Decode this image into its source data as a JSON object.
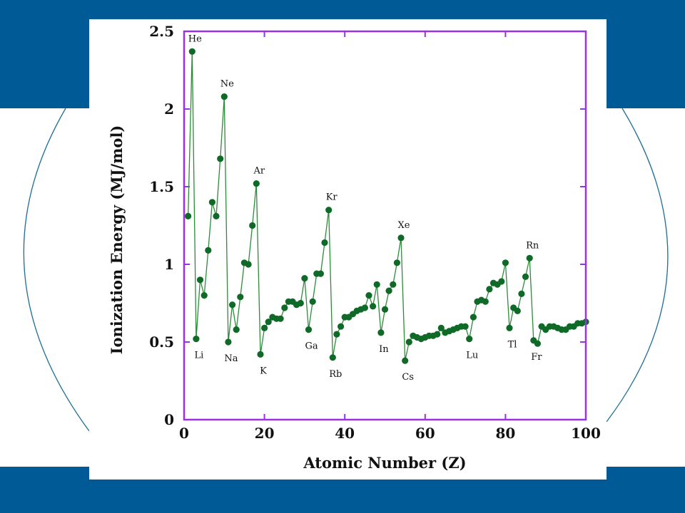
{
  "slide": {
    "band_color": "#005a96",
    "arc_color": "#1f6f96"
  },
  "chart_data": {
    "type": "line",
    "title": "",
    "xlabel": "Atomic Number (Z)",
    "ylabel": "Ionization Energy (MJ/mol)",
    "xlim": [
      0,
      100
    ],
    "ylim": [
      0,
      2.5
    ],
    "xticks": [
      0,
      20,
      40,
      60,
      80,
      100
    ],
    "yticks": [
      0,
      0.5,
      1,
      1.5,
      2,
      2.5
    ],
    "xtick_labels": [
      "0",
      "20",
      "40",
      "60",
      "80",
      "100"
    ],
    "ytick_labels": [
      "0",
      "0.5",
      "1",
      "1.5",
      "2",
      "2.5"
    ],
    "grid": false,
    "frame_color": "#9b30e6",
    "line_color": "#2e8b3a",
    "marker_color": "#0f6a28",
    "series": [
      {
        "x": [
          1,
          2,
          3,
          4,
          5,
          6,
          7,
          8,
          9,
          10,
          11,
          12,
          13,
          14,
          15,
          16,
          17,
          18,
          19,
          20,
          21,
          22,
          23,
          24,
          25,
          26,
          27,
          28,
          29,
          30,
          31,
          32,
          33,
          34,
          35,
          36,
          37,
          38,
          39,
          40,
          41,
          42,
          43,
          44,
          45,
          46,
          47,
          48,
          49,
          50,
          51,
          52,
          53,
          54,
          55,
          56,
          57,
          58,
          59,
          60,
          61,
          62,
          63,
          64,
          65,
          66,
          67,
          68,
          69,
          70,
          71,
          72,
          73,
          74,
          75,
          76,
          77,
          78,
          79,
          80,
          81,
          82,
          83,
          84,
          85,
          86,
          87,
          88,
          89,
          90,
          91,
          92,
          93,
          94,
          95,
          96,
          97,
          98,
          99,
          100
        ],
        "values": [
          1.31,
          2.37,
          0.52,
          0.9,
          0.8,
          1.09,
          1.4,
          1.31,
          1.68,
          2.08,
          0.5,
          0.74,
          0.58,
          0.79,
          1.01,
          1.0,
          1.25,
          1.52,
          0.42,
          0.59,
          0.63,
          0.66,
          0.65,
          0.65,
          0.72,
          0.76,
          0.76,
          0.74,
          0.75,
          0.91,
          0.58,
          0.76,
          0.94,
          0.94,
          1.14,
          1.35,
          0.4,
          0.55,
          0.6,
          0.66,
          0.66,
          0.68,
          0.7,
          0.71,
          0.72,
          0.8,
          0.73,
          0.87,
          0.56,
          0.71,
          0.83,
          0.87,
          1.01,
          1.17,
          0.38,
          0.5,
          0.54,
          0.53,
          0.52,
          0.53,
          0.54,
          0.54,
          0.55,
          0.59,
          0.56,
          0.57,
          0.58,
          0.59,
          0.6,
          0.6,
          0.52,
          0.66,
          0.76,
          0.77,
          0.76,
          0.84,
          0.88,
          0.87,
          0.89,
          1.01,
          0.59,
          0.72,
          0.7,
          0.81,
          0.92,
          1.04,
          0.51,
          0.49,
          0.6,
          0.58,
          0.6,
          0.6,
          0.59,
          0.58,
          0.58,
          0.6,
          0.6,
          0.62,
          0.62,
          0.63
        ]
      }
    ],
    "annotations": [
      {
        "text": "He",
        "x": 2,
        "y": 2.37,
        "pos": "above"
      },
      {
        "text": "Ne",
        "x": 10,
        "y": 2.08,
        "pos": "above"
      },
      {
        "text": "Ar",
        "x": 18,
        "y": 1.52,
        "pos": "above"
      },
      {
        "text": "Kr",
        "x": 36,
        "y": 1.35,
        "pos": "above"
      },
      {
        "text": "Xe",
        "x": 54,
        "y": 1.17,
        "pos": "above"
      },
      {
        "text": "Rn",
        "x": 86,
        "y": 1.04,
        "pos": "above"
      },
      {
        "text": "Li",
        "x": 3,
        "y": 0.52,
        "pos": "below"
      },
      {
        "text": "Na",
        "x": 11,
        "y": 0.5,
        "pos": "below"
      },
      {
        "text": "K",
        "x": 19,
        "y": 0.42,
        "pos": "below"
      },
      {
        "text": "Ga",
        "x": 31,
        "y": 0.58,
        "pos": "below"
      },
      {
        "text": "Rb",
        "x": 37,
        "y": 0.4,
        "pos": "below"
      },
      {
        "text": "In",
        "x": 49,
        "y": 0.56,
        "pos": "below"
      },
      {
        "text": "Cs",
        "x": 55,
        "y": 0.38,
        "pos": "below"
      },
      {
        "text": "Lu",
        "x": 71,
        "y": 0.52,
        "pos": "below"
      },
      {
        "text": "Tl",
        "x": 81,
        "y": 0.59,
        "pos": "below"
      },
      {
        "text": "Fr",
        "x": 87,
        "y": 0.51,
        "pos": "below"
      }
    ]
  }
}
